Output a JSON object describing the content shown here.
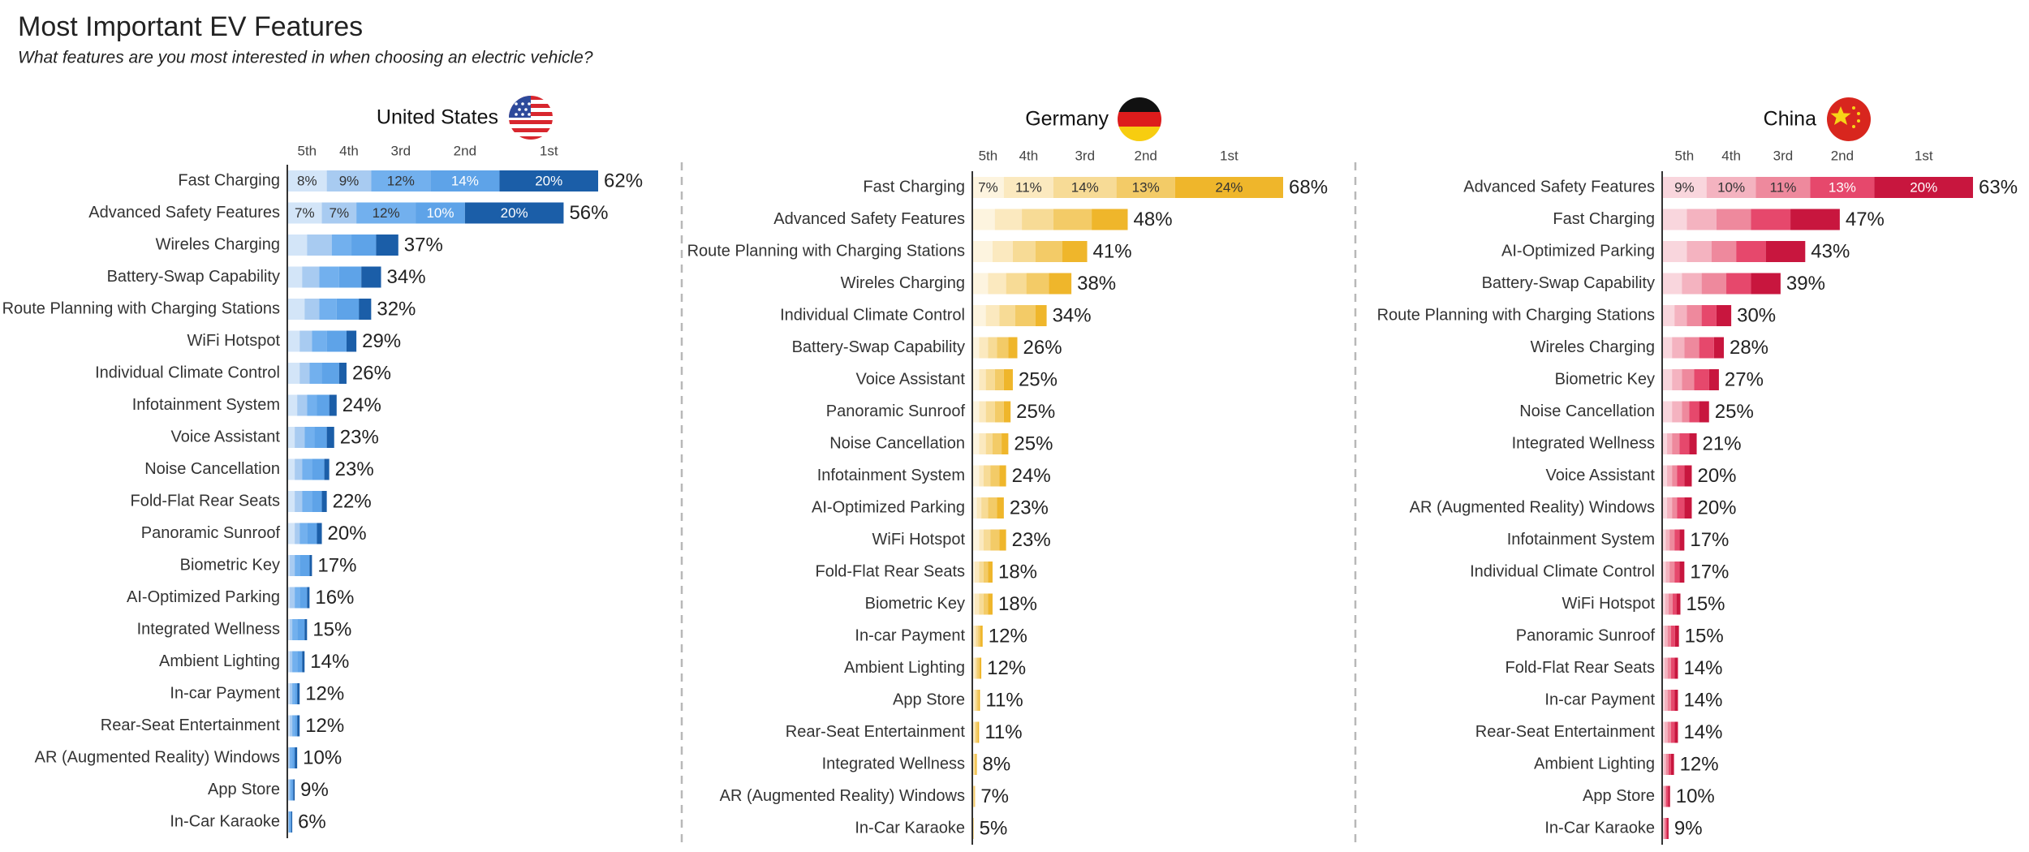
{
  "title": "Most Important EV Features",
  "subtitle": "What features are you most interested in when choosing an electric vehicle?",
  "chart_data": [
    {
      "type": "bar",
      "orientation": "horizontal",
      "stacked": true,
      "title": "United States",
      "xlim": [
        0,
        63
      ],
      "categories": [
        "Fast Charging",
        "Advanced Safety Features",
        "Wireles Charging",
        "Battery-Swap Capability",
        "Route Planning with Charging Stations",
        "WiFi Hotspot",
        "Individual Climate Control",
        "Infotainment System",
        "Voice Assistant",
        "Noise Cancellation",
        "Fold-Flat Rear Seats",
        "Panoramic Sunroof",
        "Biometric Key",
        "AI-Optimized Parking",
        "Integrated Wellness",
        "Ambient Lighting",
        "In-car Payment",
        "Rear-Seat Entertainment",
        "AR (Augmented Reality) Windows",
        "App Store",
        "In-Car Karaoke"
      ],
      "series": [
        {
          "name": "5th",
          "color": "#d3e5f8",
          "values": [
            8,
            7,
            4,
            3,
            3.5,
            2.5,
            2.5,
            2,
            1.5,
            1.5,
            1.5,
            1.5,
            0.5,
            0.5,
            0.5,
            0.5,
            0.5,
            0.5,
            0.2,
            0.2,
            0.1
          ],
          "value_labels": [
            "8%",
            "7%",
            null,
            null,
            null,
            null,
            null,
            null,
            null,
            null,
            null,
            null,
            null,
            null,
            null,
            null,
            null,
            null,
            null,
            null,
            null
          ]
        },
        {
          "name": "4th",
          "color": "#a8cbf1",
          "values": [
            9,
            7,
            5,
            3.5,
            3,
            2.5,
            2,
            2,
            2,
            1.5,
            1.5,
            1,
            1,
            1,
            0.5,
            0.5,
            0.5,
            0.5,
            0.3,
            0.3,
            0.2
          ],
          "value_labels": [
            "9%",
            "7%",
            null,
            null,
            null,
            null,
            null,
            null,
            null,
            null,
            null,
            null,
            null,
            null,
            null,
            null,
            null,
            null,
            null,
            null,
            null
          ]
        },
        {
          "name": "3rd",
          "color": "#72b0ee",
          "values": [
            12,
            12,
            4,
            4,
            3.5,
            3,
            2.5,
            2,
            2,
            2,
            2,
            1.5,
            1,
            1,
            1,
            1,
            0.5,
            0.5,
            0.5,
            0.3,
            0.2
          ],
          "value_labels": [
            "12%",
            "12%",
            null,
            null,
            null,
            null,
            null,
            null,
            null,
            null,
            null,
            null,
            null,
            null,
            null,
            null,
            null,
            null,
            null,
            null,
            null
          ]
        },
        {
          "name": "2nd",
          "color": "#5ea3e8",
          "values": [
            14,
            10,
            5,
            4.5,
            4.5,
            4,
            3.5,
            2.5,
            2.5,
            2.5,
            2,
            2,
            2,
            1.5,
            1.5,
            1,
            0.5,
            0.5,
            0.5,
            0.4,
            0.3
          ],
          "value_labels": [
            "14%",
            "10%",
            null,
            null,
            null,
            null,
            null,
            null,
            null,
            null,
            null,
            null,
            null,
            null,
            null,
            null,
            null,
            null,
            null,
            null,
            null
          ]
        },
        {
          "name": "1st",
          "color": "#1b5ea8",
          "values": [
            20,
            20,
            4.5,
            4,
            2.5,
            2,
            1.5,
            1.5,
            1.5,
            1,
            1,
            1,
            0.5,
            0.5,
            0.5,
            0.5,
            0.5,
            0.5,
            0.5,
            0.3,
            0.2
          ],
          "value_labels": [
            "20%",
            "20%",
            null,
            null,
            null,
            null,
            null,
            null,
            null,
            null,
            null,
            null,
            null,
            null,
            null,
            null,
            null,
            null,
            null,
            null,
            null
          ]
        }
      ],
      "totals": {
        "values": [
          62,
          56,
          37,
          34,
          32,
          29,
          26,
          24,
          23,
          23,
          22,
          20,
          17,
          16,
          15,
          14,
          12,
          12,
          10,
          9,
          6
        ],
        "value_labels": [
          "62%",
          "56%",
          "37%",
          "34%",
          "32%",
          "29%",
          "26%",
          "24%",
          "23%",
          "23%",
          "22%",
          "20%",
          "17%",
          "16%",
          "15%",
          "14%",
          "12%",
          "12%",
          "10%",
          "9%",
          "6%"
        ]
      }
    },
    {
      "type": "bar",
      "orientation": "horizontal",
      "stacked": true,
      "title": "Germany",
      "xlim": [
        0,
        69
      ],
      "categories": [
        "Fast Charging",
        "Advanced Safety Features",
        "Route Planning with Charging Stations",
        "Wireles Charging",
        "Individual Climate Control",
        "Battery-Swap Capability",
        "Voice Assistant",
        "Panoramic Sunroof",
        "Noise Cancellation",
        "Infotainment System",
        "AI-Optimized Parking",
        "WiFi Hotspot",
        "Fold-Flat Rear Seats",
        "Biometric Key",
        "In-car Payment",
        "Ambient Lighting",
        "App Store",
        "Rear-Seat Entertainment",
        "Integrated Wellness",
        "AR (Augmented Reality) Windows",
        "In-Car Karaoke"
      ],
      "series": [
        {
          "name": "5th",
          "color": "#fdf4df",
          "values": [
            7,
            5,
            4.5,
            3.5,
            3,
            1.5,
            1.5,
            1.5,
            1.5,
            1.5,
            1,
            1.5,
            0.5,
            0.5,
            0.3,
            0.3,
            0.3,
            0.2,
            0.1,
            0.1,
            0.05
          ],
          "value_labels": [
            "7%",
            null,
            null,
            null,
            null,
            null,
            null,
            null,
            null,
            null,
            null,
            null,
            null,
            null,
            null,
            null,
            null,
            null,
            null,
            null,
            null
          ]
        },
        {
          "name": "4th",
          "color": "#fbe9bf",
          "values": [
            11,
            6,
            4.5,
            4,
            3,
            2,
            1.5,
            1.5,
            1.5,
            1,
            1,
            1,
            1,
            1,
            0.5,
            0.4,
            0.3,
            0.3,
            0.2,
            0.1,
            0.05
          ],
          "value_labels": [
            "11%",
            null,
            null,
            null,
            null,
            null,
            null,
            null,
            null,
            null,
            null,
            null,
            null,
            null,
            null,
            null,
            null,
            null,
            null,
            null,
            null
          ]
        },
        {
          "name": "3rd",
          "color": "#f7db96",
          "values": [
            14,
            7,
            5,
            4.5,
            3.5,
            2,
            2,
            2,
            1.5,
            1.5,
            1.5,
            1.5,
            1,
            1,
            0.5,
            0.4,
            0.4,
            0.3,
            0.2,
            0.1,
            0.05
          ],
          "value_labels": [
            "14%",
            null,
            null,
            null,
            null,
            null,
            null,
            null,
            null,
            null,
            null,
            null,
            null,
            null,
            null,
            null,
            null,
            null,
            null,
            null,
            null
          ]
        },
        {
          "name": "2nd",
          "color": "#f3cb67",
          "values": [
            13,
            8.5,
            6,
            5,
            4.5,
            2.5,
            2,
            2,
            2,
            2,
            2,
            2,
            1,
            1,
            0.5,
            0.5,
            0.4,
            0.4,
            0.3,
            0.2,
            0.1
          ],
          "value_labels": [
            "13%",
            null,
            null,
            null,
            null,
            null,
            null,
            null,
            null,
            null,
            null,
            null,
            null,
            null,
            null,
            null,
            null,
            null,
            null,
            null,
            null
          ]
        },
        {
          "name": "1st",
          "color": "#efb62b",
          "values": [
            24,
            8,
            5.5,
            5,
            2.5,
            2,
            2,
            1.5,
            1.5,
            1.5,
            1.5,
            1.5,
            1,
            1,
            0.5,
            0.4,
            0.3,
            0.3,
            0.2,
            0.1,
            0.05
          ],
          "value_labels": [
            "24%",
            null,
            null,
            null,
            null,
            null,
            null,
            null,
            null,
            null,
            null,
            null,
            null,
            null,
            null,
            null,
            null,
            null,
            null,
            null,
            null
          ]
        }
      ],
      "totals": {
        "values": [
          68,
          48,
          41,
          38,
          34,
          26,
          25,
          25,
          25,
          24,
          23,
          23,
          18,
          18,
          12,
          12,
          11,
          11,
          8,
          7,
          5
        ],
        "value_labels": [
          "68%",
          "48%",
          "41%",
          "38%",
          "34%",
          "26%",
          "25%",
          "25%",
          "25%",
          "24%",
          "23%",
          "23%",
          "18%",
          "18%",
          "12%",
          "12%",
          "11%",
          "11%",
          "8%",
          "7%",
          "5%"
        ]
      }
    },
    {
      "type": "bar",
      "orientation": "horizontal",
      "stacked": true,
      "title": "China",
      "xlim": [
        0,
        63
      ],
      "categories": [
        "Advanced Safety Features",
        "Fast Charging",
        "AI-Optimized Parking",
        "Battery-Swap Capability",
        "Route Planning with Charging Stations",
        "Wireles Charging",
        "Biometric Key",
        "Noise Cancellation",
        "Integrated Wellness",
        "Voice Assistant",
        "AR (Augmented Reality) Windows",
        "Infotainment System",
        "Individual Climate Control",
        "WiFi Hotspot",
        "Panoramic Sunroof",
        "Fold-Flat Rear Seats",
        "In-car Payment",
        "Rear-Seat Entertainment",
        "Ambient Lighting",
        "App Store",
        "In-Car Karaoke"
      ],
      "series": [
        {
          "name": "5th",
          "color": "#f9d6dd",
          "values": [
            9,
            5,
            5,
            4,
            2.5,
            2,
            2,
            2,
            1,
            1,
            1,
            0.7,
            0.7,
            0.6,
            0.5,
            0.5,
            0.5,
            0.5,
            0.4,
            0.2,
            0.2
          ],
          "value_labels": [
            "9%",
            null,
            null,
            null,
            null,
            null,
            null,
            null,
            null,
            null,
            null,
            null,
            null,
            null,
            null,
            null,
            null,
            null,
            null,
            null,
            null
          ]
        },
        {
          "name": "4th",
          "color": "#f4b3c0",
          "values": [
            10,
            6,
            5,
            4,
            2.5,
            2.5,
            2,
            2,
            1,
            1,
            1,
            0.8,
            0.8,
            0.7,
            0.6,
            0.6,
            0.6,
            0.6,
            0.4,
            0.3,
            0.2
          ],
          "value_labels": [
            "10%",
            null,
            null,
            null,
            null,
            null,
            null,
            null,
            null,
            null,
            null,
            null,
            null,
            null,
            null,
            null,
            null,
            null,
            null,
            null,
            null
          ]
        },
        {
          "name": "3rd",
          "color": "#ee899d",
          "values": [
            11,
            7,
            5,
            5,
            3,
            3,
            2.5,
            1.5,
            1.5,
            1,
            1,
            1,
            1,
            0.8,
            0.7,
            0.7,
            0.7,
            0.7,
            0.5,
            0.3,
            0.3
          ],
          "value_labels": [
            "11%",
            null,
            null,
            null,
            null,
            null,
            null,
            null,
            null,
            null,
            null,
            null,
            null,
            null,
            null,
            null,
            null,
            null,
            null,
            null,
            null
          ]
        },
        {
          "name": "2nd",
          "color": "#e6486c",
          "values": [
            13,
            8,
            6,
            5,
            3,
            3,
            3,
            2,
            2,
            1.5,
            1.5,
            1,
            1,
            0.8,
            0.8,
            0.7,
            0.7,
            0.7,
            0.5,
            0.4,
            0.3
          ],
          "value_labels": [
            "13%",
            null,
            null,
            null,
            null,
            null,
            null,
            null,
            null,
            null,
            null,
            null,
            null,
            null,
            null,
            null,
            null,
            null,
            null,
            null,
            null
          ]
        },
        {
          "name": "1st",
          "color": "#c8163e",
          "values": [
            20,
            10,
            8,
            6,
            3,
            2,
            2,
            2,
            1.5,
            1.5,
            1.5,
            1,
            1,
            0.8,
            0.8,
            0.7,
            0.7,
            0.7,
            0.6,
            0.4,
            0.3
          ],
          "value_labels": [
            "20%",
            null,
            null,
            null,
            null,
            null,
            null,
            null,
            null,
            null,
            null,
            null,
            null,
            null,
            null,
            null,
            null,
            null,
            null,
            null,
            null
          ]
        }
      ],
      "totals": {
        "values": [
          63,
          47,
          43,
          39,
          30,
          28,
          27,
          25,
          21,
          20,
          20,
          17,
          17,
          15,
          15,
          14,
          14,
          14,
          12,
          10,
          9
        ],
        "value_labels": [
          "63%",
          "47%",
          "43%",
          "39%",
          "30%",
          "28%",
          "27%",
          "25%",
          "21%",
          "20%",
          "20%",
          "17%",
          "17%",
          "15%",
          "15%",
          "14%",
          "14%",
          "14%",
          "12%",
          "10%",
          "9%"
        ]
      }
    }
  ]
}
